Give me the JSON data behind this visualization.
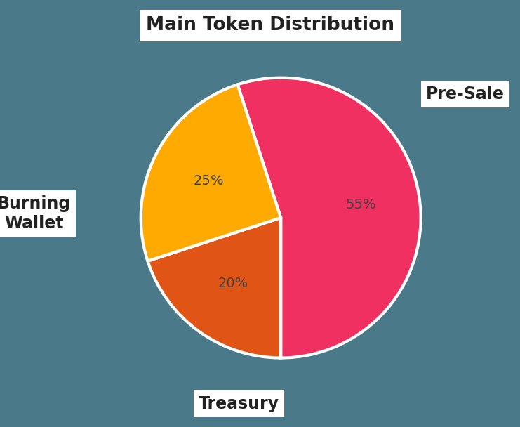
{
  "title": "Main Token Distribution",
  "background_color": "#4a7a8a",
  "slices": [
    {
      "label": "Pre-Sale",
      "value": 55,
      "color": "#f03060",
      "pct_label": "55%"
    },
    {
      "label": "Treasury",
      "value": 20,
      "color": "#e05515",
      "pct_label": "20%"
    },
    {
      "label": "Burning Wallet",
      "value": 25,
      "color": "#ffaa00",
      "pct_label": "25%"
    }
  ],
  "startangle": 108,
  "wedge_linewidth": 3,
  "wedge_edgecolor": "#ffffff",
  "title_fontsize": 19,
  "label_fontsize": 17,
  "pct_fontsize": 14,
  "pct_color": "#444444"
}
